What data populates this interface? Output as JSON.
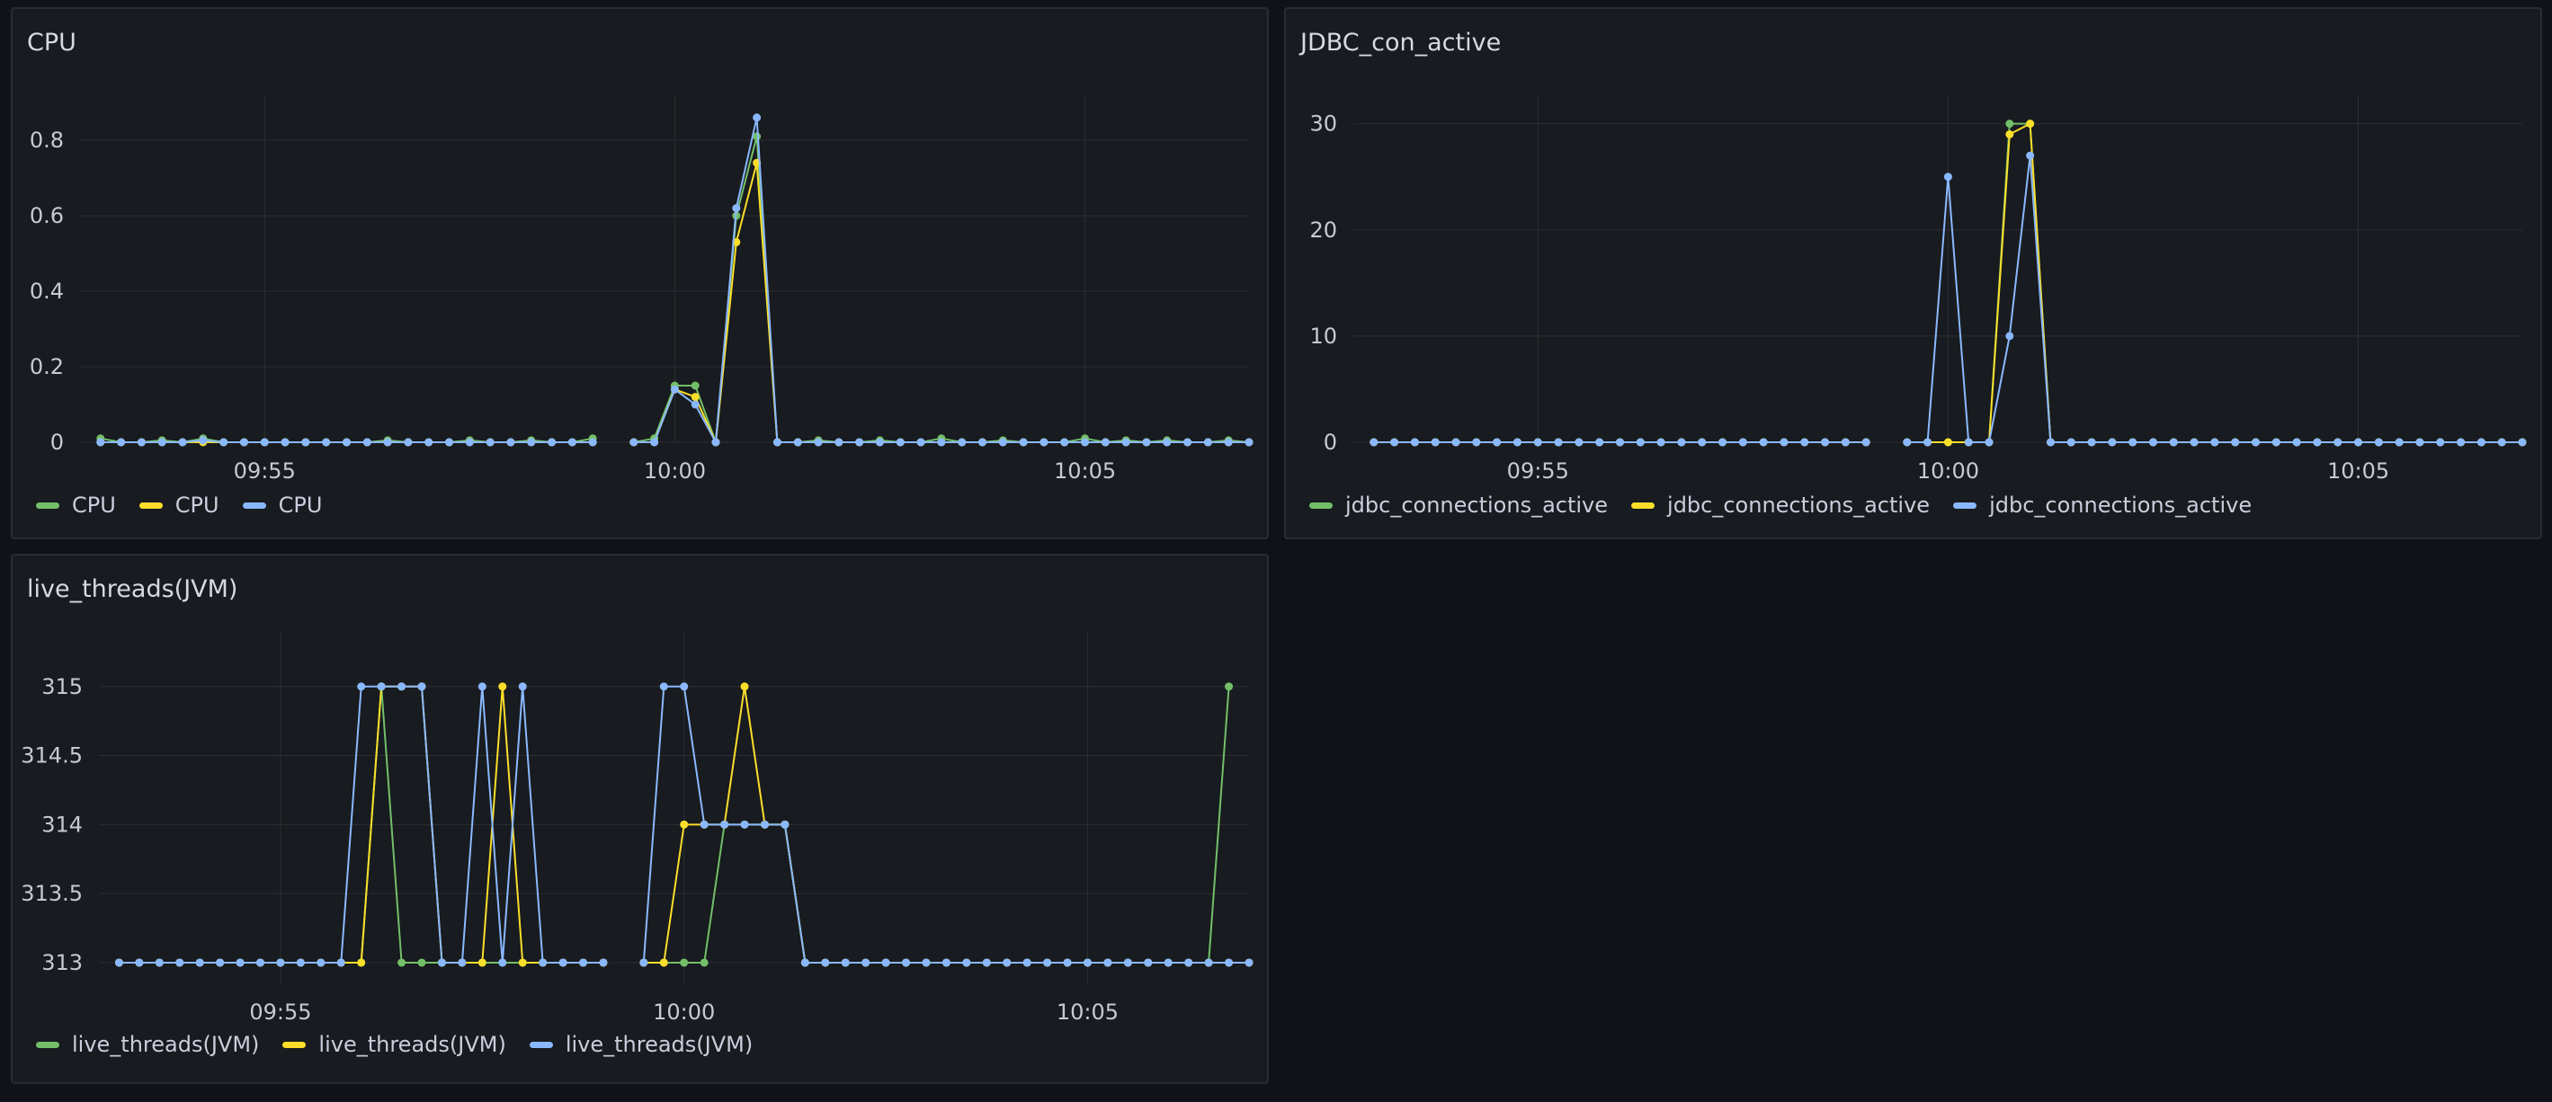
{
  "colors": {
    "green": "#73bf69",
    "yellow": "#fade2a",
    "blue": "#8ab8ff"
  },
  "panels": [
    {
      "title": "CPU",
      "legend": [
        "CPU",
        "CPU",
        "CPU"
      ]
    },
    {
      "title": "JDBC_con_active",
      "legend": [
        "jdbc_connections_active",
        "jdbc_connections_active",
        "jdbc_connections_active"
      ]
    },
    {
      "title": "live_threads(JVM)",
      "legend": [
        "live_threads(JVM)",
        "live_threads(JVM)",
        "live_threads(JVM)"
      ]
    }
  ],
  "chart_data": [
    {
      "type": "line",
      "title": "CPU",
      "x_unit": "minutes (time of day)",
      "xlim": [
        "09:52:45",
        "10:07:00"
      ],
      "ylim": [
        0,
        0.9
      ],
      "yticks": [
        "0",
        "0.2",
        "0.4",
        "0.6",
        "0.8"
      ],
      "xticks": [
        "09:55",
        "10:00",
        "10:05"
      ],
      "grid": true,
      "legend": "bottom",
      "x": [
        "09:53:00",
        "09:53:15",
        "09:53:30",
        "09:53:45",
        "09:54:00",
        "09:54:15",
        "09:54:30",
        "09:54:45",
        "09:55:00",
        "09:55:15",
        "09:55:30",
        "09:55:45",
        "09:56:00",
        "09:56:15",
        "09:56:30",
        "09:56:45",
        "09:57:00",
        "09:57:15",
        "09:57:30",
        "09:57:45",
        "09:58:00",
        "09:58:15",
        "09:58:30",
        "09:58:45",
        "09:59:00",
        "09:59:15",
        "09:59:30",
        "09:59:45",
        "10:00:00",
        "10:00:15",
        "10:00:30",
        "10:00:45",
        "10:01:00",
        "10:01:15",
        "10:01:30",
        "10:01:45",
        "10:02:00",
        "10:02:15",
        "10:02:30",
        "10:02:45",
        "10:03:00",
        "10:03:15",
        "10:03:30",
        "10:03:45",
        "10:04:00",
        "10:04:15",
        "10:04:30",
        "10:04:45",
        "10:05:00",
        "10:05:15",
        "10:05:30",
        "10:05:45",
        "10:06:00",
        "10:06:15",
        "10:06:30",
        "10:06:45",
        "10:07:00"
      ],
      "series": [
        {
          "color": "green",
          "values": [
            0.01,
            0,
            0,
            0.005,
            0,
            0.01,
            0,
            0,
            0,
            0,
            0,
            0,
            0,
            0,
            0.005,
            0,
            0,
            0,
            0.005,
            0,
            0,
            0.005,
            0,
            0,
            0.01,
            null,
            0,
            0.01,
            0.15,
            0.15,
            0,
            0.6,
            0.81,
            0,
            0,
            0.005,
            0,
            0,
            0.005,
            0,
            0,
            0.01,
            0,
            0,
            0.005,
            0,
            0,
            0,
            0.01,
            0,
            0.005,
            0,
            0.005,
            0,
            0,
            0.005,
            0
          ]
        },
        {
          "color": "yellow",
          "values": [
            0,
            0,
            0,
            0,
            0,
            0,
            0,
            0,
            0,
            0,
            0,
            0,
            0,
            0,
            0,
            0,
            0,
            0,
            0,
            0,
            0,
            0,
            0,
            0,
            0,
            null,
            0,
            0,
            0.14,
            0.12,
            0,
            0.53,
            0.74,
            0,
            0,
            0,
            0,
            0,
            0,
            0,
            0,
            0,
            0,
            0,
            0,
            0,
            0,
            0,
            0,
            0,
            0,
            0,
            0,
            0,
            0,
            0,
            0
          ]
        },
        {
          "color": "blue",
          "values": [
            0,
            0,
            0,
            0,
            0,
            0.005,
            0,
            0,
            0,
            0,
            0,
            0,
            0,
            0,
            0,
            0,
            0,
            0,
            0,
            0,
            0,
            0,
            0,
            0,
            0,
            null,
            0,
            0,
            0.14,
            0.1,
            0,
            0.62,
            0.86,
            0,
            0,
            0,
            0,
            0,
            0,
            0,
            0,
            0,
            0,
            0,
            0,
            0,
            0,
            0,
            0,
            0,
            0,
            0,
            0,
            0,
            0,
            0,
            0
          ]
        }
      ]
    },
    {
      "type": "line",
      "title": "JDBC_con_active",
      "xlim": [
        "09:52:45",
        "10:07:00"
      ],
      "ylim": [
        0,
        32
      ],
      "yticks": [
        "0",
        "10",
        "20",
        "30"
      ],
      "xticks": [
        "09:55",
        "10:00",
        "10:05"
      ],
      "grid": true,
      "legend": "bottom",
      "x": [
        "09:53:00",
        "09:53:15",
        "09:53:30",
        "09:53:45",
        "09:54:00",
        "09:54:15",
        "09:54:30",
        "09:54:45",
        "09:55:00",
        "09:55:15",
        "09:55:30",
        "09:55:45",
        "09:56:00",
        "09:56:15",
        "09:56:30",
        "09:56:45",
        "09:57:00",
        "09:57:15",
        "09:57:30",
        "09:57:45",
        "09:58:00",
        "09:58:15",
        "09:58:30",
        "09:58:45",
        "09:59:00",
        "09:59:15",
        "09:59:30",
        "09:59:45",
        "10:00:00",
        "10:00:15",
        "10:00:30",
        "10:00:45",
        "10:01:00",
        "10:01:15",
        "10:01:30",
        "10:01:45",
        "10:02:00",
        "10:02:15",
        "10:02:30",
        "10:02:45",
        "10:03:00",
        "10:03:15",
        "10:03:30",
        "10:03:45",
        "10:04:00",
        "10:04:15",
        "10:04:30",
        "10:04:45",
        "10:05:00",
        "10:05:15",
        "10:05:30",
        "10:05:45",
        "10:06:00",
        "10:06:15",
        "10:06:30",
        "10:06:45",
        "10:07:00"
      ],
      "series": [
        {
          "color": "green",
          "values": [
            0,
            0,
            0,
            0,
            0,
            0,
            0,
            0,
            0,
            0,
            0,
            0,
            0,
            0,
            0,
            0,
            0,
            0,
            0,
            0,
            0,
            0,
            0,
            0,
            0,
            null,
            0,
            0,
            0,
            0,
            0,
            30,
            30,
            0,
            0,
            0,
            0,
            0,
            0,
            0,
            0,
            0,
            0,
            0,
            0,
            0,
            0,
            0,
            0,
            0,
            0,
            0,
            0,
            0,
            0,
            0,
            0
          ]
        },
        {
          "color": "yellow",
          "values": [
            0,
            0,
            0,
            0,
            0,
            0,
            0,
            0,
            0,
            0,
            0,
            0,
            0,
            0,
            0,
            0,
            0,
            0,
            0,
            0,
            0,
            0,
            0,
            0,
            0,
            null,
            0,
            0,
            0,
            0,
            0,
            29,
            30,
            0,
            0,
            0,
            0,
            0,
            0,
            0,
            0,
            0,
            0,
            0,
            0,
            0,
            0,
            0,
            0,
            0,
            0,
            0,
            0,
            0,
            0,
            0,
            0
          ]
        },
        {
          "color": "blue",
          "values": [
            0,
            0,
            0,
            0,
            0,
            0,
            0,
            0,
            0,
            0,
            0,
            0,
            0,
            0,
            0,
            0,
            0,
            0,
            0,
            0,
            0,
            0,
            0,
            0,
            0,
            null,
            0,
            0,
            25,
            0,
            0,
            10,
            27,
            0,
            0,
            0,
            0,
            0,
            0,
            0,
            0,
            0,
            0,
            0,
            0,
            0,
            0,
            0,
            0,
            0,
            0,
            0,
            0,
            0,
            0,
            0,
            0
          ]
        }
      ]
    },
    {
      "type": "line",
      "title": "live_threads(JVM)",
      "xlim": [
        "09:52:45",
        "10:07:00"
      ],
      "ylim": [
        312.85,
        315.35
      ],
      "yticks": [
        "313",
        "313.5",
        "314",
        "314.5",
        "315"
      ],
      "xticks": [
        "09:55",
        "10:00",
        "10:05"
      ],
      "grid": true,
      "legend": "bottom",
      "x": [
        "09:53:00",
        "09:53:15",
        "09:53:30",
        "09:53:45",
        "09:54:00",
        "09:54:15",
        "09:54:30",
        "09:54:45",
        "09:55:00",
        "09:55:15",
        "09:55:30",
        "09:55:45",
        "09:56:00",
        "09:56:15",
        "09:56:30",
        "09:56:45",
        "09:57:00",
        "09:57:15",
        "09:57:30",
        "09:57:45",
        "09:58:00",
        "09:58:15",
        "09:58:30",
        "09:58:45",
        "09:59:00",
        "09:59:15",
        "09:59:30",
        "09:59:45",
        "10:00:00",
        "10:00:15",
        "10:00:30",
        "10:00:45",
        "10:01:00",
        "10:01:15",
        "10:01:30",
        "10:01:45",
        "10:02:00",
        "10:02:15",
        "10:02:30",
        "10:02:45",
        "10:03:00",
        "10:03:15",
        "10:03:30",
        "10:03:45",
        "10:04:00",
        "10:04:15",
        "10:04:30",
        "10:04:45",
        "10:05:00",
        "10:05:15",
        "10:05:30",
        "10:05:45",
        "10:06:00",
        "10:06:15",
        "10:06:30",
        "10:06:45",
        "10:07:00"
      ],
      "series": [
        {
          "color": "green",
          "values": [
            313,
            313,
            313,
            313,
            313,
            313,
            313,
            313,
            313,
            313,
            313,
            313,
            313,
            315,
            313,
            313,
            313,
            313,
            313,
            313,
            313,
            313,
            313,
            313,
            313,
            null,
            313,
            313,
            313,
            313,
            314,
            314,
            314,
            314,
            313,
            313,
            313,
            313,
            313,
            313,
            313,
            313,
            313,
            313,
            313,
            313,
            313,
            313,
            313,
            313,
            313,
            313,
            313,
            313,
            313,
            315,
            null
          ]
        },
        {
          "color": "yellow",
          "values": [
            313,
            313,
            313,
            313,
            313,
            313,
            313,
            313,
            313,
            313,
            313,
            313,
            313,
            315,
            315,
            315,
            313,
            313,
            313,
            315,
            313,
            313,
            313,
            313,
            313,
            null,
            313,
            313,
            314,
            314,
            314,
            315,
            314,
            314,
            313,
            313,
            313,
            313,
            313,
            313,
            313,
            313,
            313,
            313,
            313,
            313,
            313,
            313,
            313,
            313,
            313,
            313,
            313,
            313,
            313,
            313,
            313
          ]
        },
        {
          "color": "blue",
          "values": [
            313,
            313,
            313,
            313,
            313,
            313,
            313,
            313,
            313,
            313,
            313,
            313,
            315,
            315,
            315,
            315,
            313,
            313,
            315,
            313,
            315,
            313,
            313,
            313,
            313,
            null,
            313,
            315,
            315,
            314,
            314,
            314,
            314,
            314,
            313,
            313,
            313,
            313,
            313,
            313,
            313,
            313,
            313,
            313,
            313,
            313,
            313,
            313,
            313,
            313,
            313,
            313,
            313,
            313,
            313,
            313,
            313
          ]
        }
      ]
    }
  ]
}
